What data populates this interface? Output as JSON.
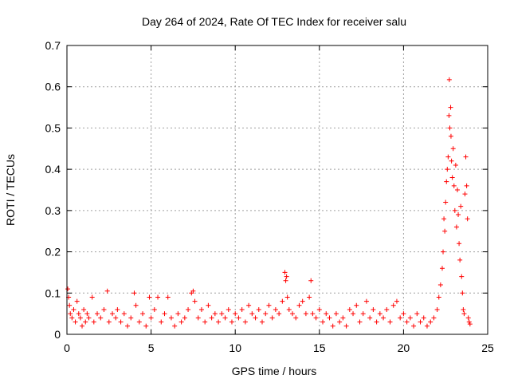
{
  "chart_data": {
    "type": "scatter",
    "title": "Day 264 of 2024, Rate Of TEC Index for receiver salu",
    "xlabel": "GPS time / hours",
    "ylabel": "ROTI / TECUs",
    "xlim": [
      0,
      25
    ],
    "ylim": [
      0,
      0.7
    ],
    "xticks": [
      0,
      5,
      10,
      15,
      20,
      25
    ],
    "xtick_labels": [
      "0",
      "5",
      "10",
      "15",
      "20",
      "25"
    ],
    "yticks": [
      0,
      0.1,
      0.2,
      0.3,
      0.4,
      0.5,
      0.6,
      0.7
    ],
    "ytick_labels": [
      "0",
      "0.1",
      "0.2",
      "0.3",
      "0.4",
      "0.5",
      "0.6",
      "0.7"
    ],
    "grid": true,
    "marker": "+",
    "marker_color": "#ff0000",
    "series": [
      {
        "points": [
          [
            0.05,
            0.11
          ],
          [
            0.1,
            0.09
          ],
          [
            0.15,
            0.07
          ],
          [
            0.2,
            0.05
          ],
          [
            0.3,
            0.04
          ],
          [
            0.4,
            0.06
          ],
          [
            0.5,
            0.03
          ],
          [
            0.6,
            0.08
          ],
          [
            0.7,
            0.05
          ],
          [
            0.8,
            0.04
          ],
          [
            0.9,
            0.02
          ],
          [
            1.0,
            0.06
          ],
          [
            1.1,
            0.03
          ],
          [
            1.2,
            0.05
          ],
          [
            1.3,
            0.04
          ],
          [
            1.5,
            0.09
          ],
          [
            1.6,
            0.03
          ],
          [
            1.8,
            0.05
          ],
          [
            2.0,
            0.04
          ],
          [
            2.2,
            0.06
          ],
          [
            2.4,
            0.105
          ],
          [
            2.5,
            0.03
          ],
          [
            2.7,
            0.05
          ],
          [
            2.9,
            0.04
          ],
          [
            3.0,
            0.06
          ],
          [
            3.2,
            0.03
          ],
          [
            3.4,
            0.05
          ],
          [
            3.6,
            0.02
          ],
          [
            3.8,
            0.04
          ],
          [
            4.0,
            0.1
          ],
          [
            4.1,
            0.07
          ],
          [
            4.3,
            0.03
          ],
          [
            4.5,
            0.05
          ],
          [
            4.7,
            0.02
          ],
          [
            4.9,
            0.09
          ],
          [
            5.0,
            0.04
          ],
          [
            5.2,
            0.06
          ],
          [
            5.4,
            0.09
          ],
          [
            5.6,
            0.03
          ],
          [
            5.8,
            0.05
          ],
          [
            6.0,
            0.09
          ],
          [
            6.2,
            0.04
          ],
          [
            6.4,
            0.02
          ],
          [
            6.6,
            0.05
          ],
          [
            6.8,
            0.03
          ],
          [
            7.0,
            0.04
          ],
          [
            7.2,
            0.06
          ],
          [
            7.4,
            0.1
          ],
          [
            7.5,
            0.105
          ],
          [
            7.6,
            0.08
          ],
          [
            7.8,
            0.04
          ],
          [
            8.0,
            0.06
          ],
          [
            8.2,
            0.03
          ],
          [
            8.4,
            0.07
          ],
          [
            8.6,
            0.04
          ],
          [
            8.8,
            0.05
          ],
          [
            9.0,
            0.03
          ],
          [
            9.2,
            0.05
          ],
          [
            9.4,
            0.04
          ],
          [
            9.6,
            0.06
          ],
          [
            9.8,
            0.03
          ],
          [
            10.0,
            0.05
          ],
          [
            10.2,
            0.04
          ],
          [
            10.4,
            0.06
          ],
          [
            10.6,
            0.03
          ],
          [
            10.8,
            0.07
          ],
          [
            11.0,
            0.05
          ],
          [
            11.2,
            0.04
          ],
          [
            11.4,
            0.06
          ],
          [
            11.6,
            0.03
          ],
          [
            11.8,
            0.05
          ],
          [
            12.0,
            0.07
          ],
          [
            12.2,
            0.04
          ],
          [
            12.4,
            0.06
          ],
          [
            12.6,
            0.05
          ],
          [
            12.8,
            0.08
          ],
          [
            12.95,
            0.15
          ],
          [
            13.0,
            0.13
          ],
          [
            13.05,
            0.14
          ],
          [
            13.1,
            0.09
          ],
          [
            13.2,
            0.06
          ],
          [
            13.4,
            0.05
          ],
          [
            13.6,
            0.04
          ],
          [
            13.8,
            0.07
          ],
          [
            14.0,
            0.08
          ],
          [
            14.2,
            0.05
          ],
          [
            14.4,
            0.09
          ],
          [
            14.5,
            0.13
          ],
          [
            14.6,
            0.05
          ],
          [
            14.8,
            0.04
          ],
          [
            15.0,
            0.06
          ],
          [
            15.2,
            0.03
          ],
          [
            15.4,
            0.05
          ],
          [
            15.6,
            0.04
          ],
          [
            15.8,
            0.02
          ],
          [
            16.0,
            0.05
          ],
          [
            16.2,
            0.03
          ],
          [
            16.4,
            0.04
          ],
          [
            16.6,
            0.02
          ],
          [
            16.8,
            0.06
          ],
          [
            17.0,
            0.05
          ],
          [
            17.2,
            0.07
          ],
          [
            17.4,
            0.03
          ],
          [
            17.6,
            0.05
          ],
          [
            17.8,
            0.08
          ],
          [
            18.0,
            0.04
          ],
          [
            18.2,
            0.06
          ],
          [
            18.4,
            0.03
          ],
          [
            18.6,
            0.05
          ],
          [
            18.8,
            0.04
          ],
          [
            19.0,
            0.06
          ],
          [
            19.2,
            0.03
          ],
          [
            19.4,
            0.07
          ],
          [
            19.6,
            0.08
          ],
          [
            19.8,
            0.04
          ],
          [
            20.0,
            0.05
          ],
          [
            20.2,
            0.03
          ],
          [
            20.4,
            0.04
          ],
          [
            20.6,
            0.02
          ],
          [
            20.8,
            0.05
          ],
          [
            21.0,
            0.03
          ],
          [
            21.2,
            0.04
          ],
          [
            21.4,
            0.02
          ],
          [
            21.6,
            0.03
          ],
          [
            21.8,
            0.04
          ],
          [
            22.0,
            0.06
          ],
          [
            22.1,
            0.09
          ],
          [
            22.2,
            0.12
          ],
          [
            22.3,
            0.16
          ],
          [
            22.35,
            0.2
          ],
          [
            22.4,
            0.28
          ],
          [
            22.45,
            0.25
          ],
          [
            22.5,
            0.32
          ],
          [
            22.55,
            0.37
          ],
          [
            22.6,
            0.4
          ],
          [
            22.65,
            0.43
          ],
          [
            22.7,
            0.53
          ],
          [
            22.72,
            0.617
          ],
          [
            22.75,
            0.5
          ],
          [
            22.8,
            0.55
          ],
          [
            22.82,
            0.48
          ],
          [
            22.85,
            0.42
          ],
          [
            22.9,
            0.38
          ],
          [
            22.95,
            0.45
          ],
          [
            23.0,
            0.36
          ],
          [
            23.05,
            0.3
          ],
          [
            23.1,
            0.41
          ],
          [
            23.15,
            0.26
          ],
          [
            23.2,
            0.35
          ],
          [
            23.25,
            0.29
          ],
          [
            23.3,
            0.22
          ],
          [
            23.35,
            0.18
          ],
          [
            23.4,
            0.31
          ],
          [
            23.45,
            0.14
          ],
          [
            23.5,
            0.1
          ],
          [
            23.55,
            0.06
          ],
          [
            23.6,
            0.05
          ],
          [
            23.65,
            0.34
          ],
          [
            23.7,
            0.43
          ],
          [
            23.75,
            0.36
          ],
          [
            23.8,
            0.28
          ],
          [
            23.85,
            0.04
          ],
          [
            23.9,
            0.03
          ],
          [
            23.95,
            0.025
          ]
        ]
      }
    ]
  }
}
